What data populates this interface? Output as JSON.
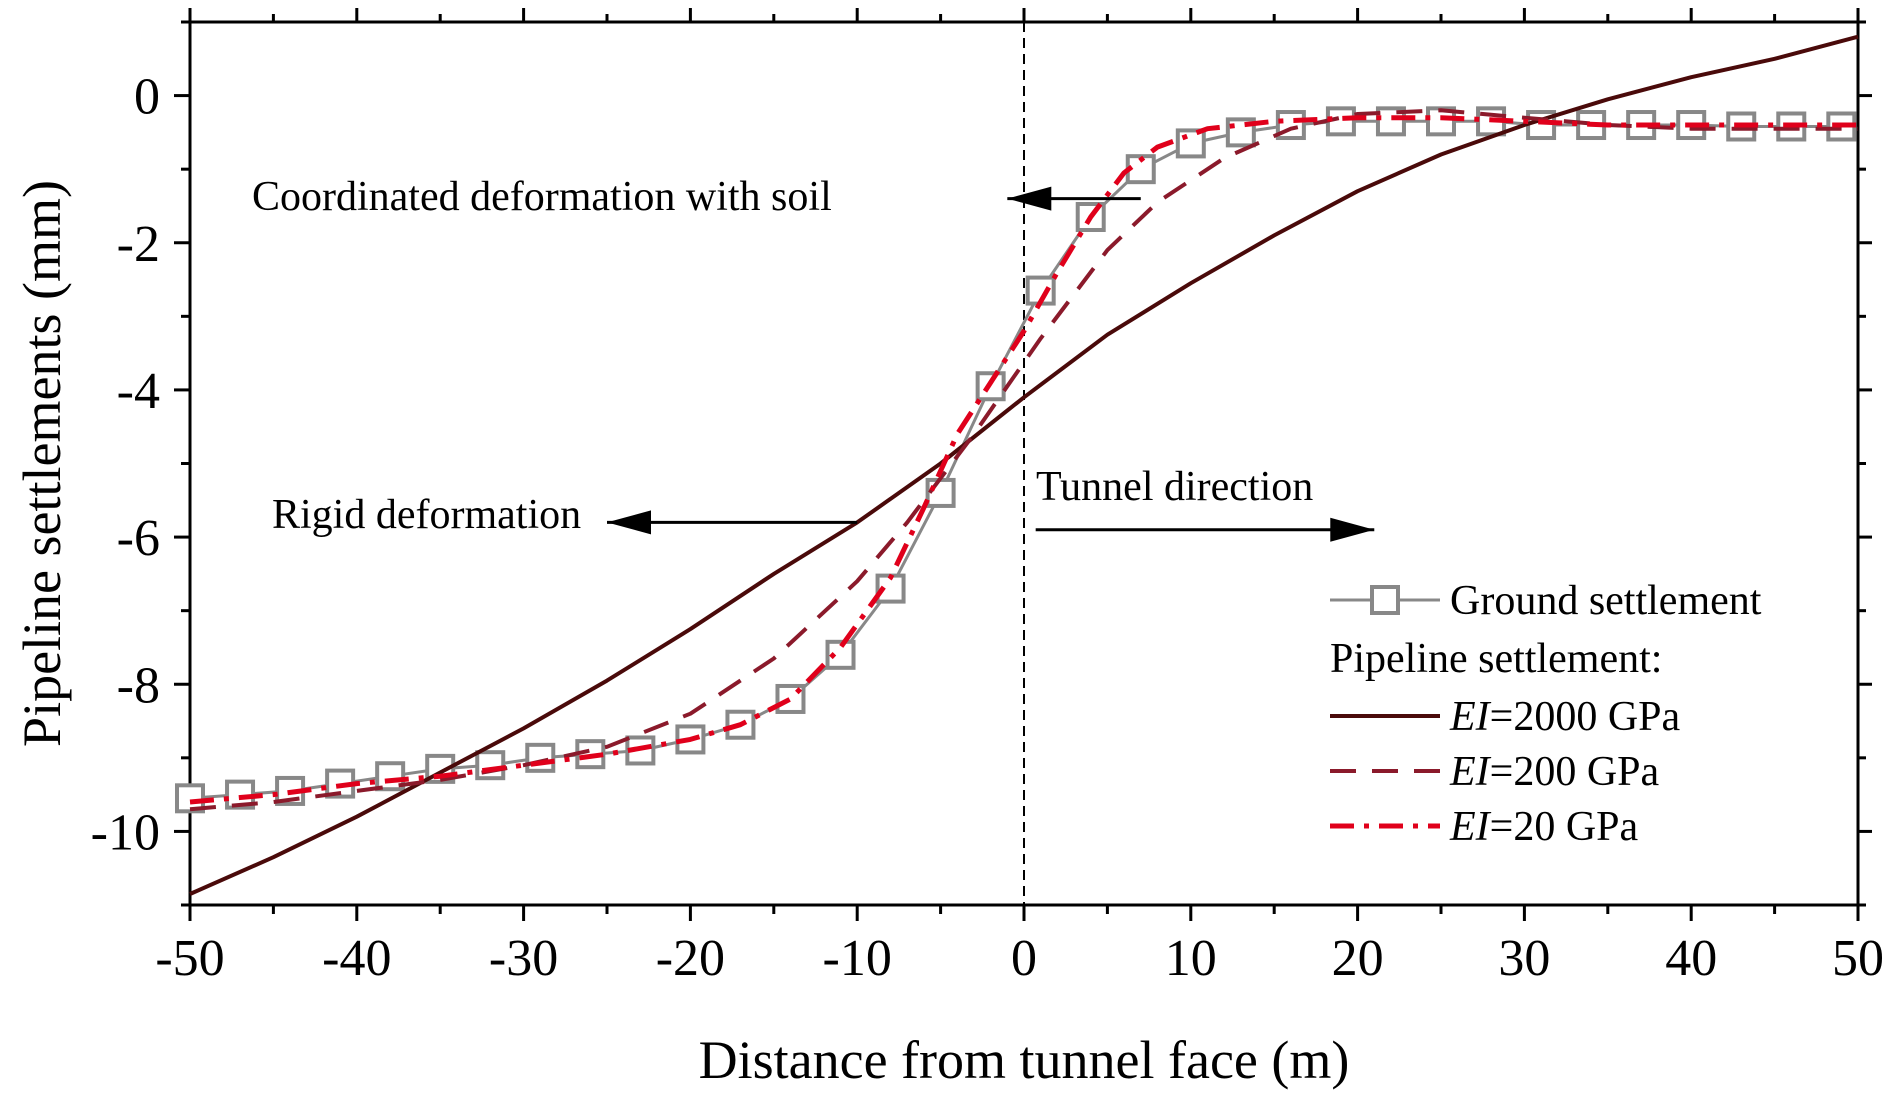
{
  "chart_data": {
    "type": "line",
    "title": "",
    "xlabel": "Distance from tunnel face (m)",
    "ylabel": "Pipeline settlements (mm)",
    "xlim": [
      -50,
      50
    ],
    "ylim": [
      -11,
      1
    ],
    "xticks": [
      -50,
      -40,
      -30,
      -20,
      -10,
      0,
      10,
      20,
      30,
      40,
      50
    ],
    "xtick_labels": [
      "-50",
      "-40",
      "-30",
      "-20",
      "-10",
      "0",
      "10",
      "20",
      "30",
      "40",
      "50"
    ],
    "yticks": [
      0,
      -2,
      -4,
      -6,
      -8,
      -10
    ],
    "ytick_labels": [
      "0",
      "-2",
      "-4",
      "-6",
      "-8",
      "-10"
    ],
    "grid": false,
    "legend_position": "lower-right",
    "legend_header": "Pipeline settlement:",
    "series": [
      {
        "name": "Ground settlement",
        "style": "solid-square-markers",
        "color": "#888888",
        "x": [
          -50,
          -47,
          -44,
          -41,
          -38,
          -35,
          -32,
          -29,
          -26,
          -23,
          -20,
          -17,
          -14,
          -11,
          -8,
          -5,
          -2,
          1,
          4,
          7,
          10,
          13,
          16,
          19,
          22,
          25,
          28,
          31,
          34,
          37,
          40,
          43,
          46,
          49
        ],
        "y": [
          -9.55,
          -9.5,
          -9.45,
          -9.35,
          -9.25,
          -9.15,
          -9.1,
          -9.0,
          -8.95,
          -8.9,
          -8.75,
          -8.55,
          -8.2,
          -7.6,
          -6.7,
          -5.4,
          -3.95,
          -2.65,
          -1.65,
          -1.0,
          -0.65,
          -0.5,
          -0.4,
          -0.35,
          -0.35,
          -0.35,
          -0.35,
          -0.4,
          -0.4,
          -0.4,
          -0.4,
          -0.42,
          -0.42,
          -0.42
        ]
      },
      {
        "name": "EI=2000 GPa",
        "legend_prefix": "EI",
        "legend_suffix": "=2000 GPa",
        "style": "solid",
        "color": "#4a0a0a",
        "x": [
          -50,
          -45,
          -40,
          -35,
          -30,
          -25,
          -20,
          -15,
          -10,
          -5,
          0,
          5,
          10,
          15,
          20,
          25,
          30,
          35,
          40,
          45,
          50
        ],
        "y": [
          -10.85,
          -10.35,
          -9.8,
          -9.2,
          -8.6,
          -7.95,
          -7.25,
          -6.5,
          -5.8,
          -5.0,
          -4.1,
          -3.25,
          -2.55,
          -1.9,
          -1.3,
          -0.8,
          -0.4,
          -0.05,
          0.25,
          0.5,
          0.8
        ]
      },
      {
        "name": "EI=200 GPa",
        "legend_prefix": "EI",
        "legend_suffix": "=200 GPa",
        "style": "dashed",
        "color": "#8b1a2b",
        "x": [
          -50,
          -45,
          -40,
          -35,
          -30,
          -25,
          -20,
          -15,
          -10,
          -7,
          -5,
          -3,
          -1,
          1,
          3,
          5,
          8,
          12,
          16,
          20,
          25,
          30,
          35,
          40,
          45,
          50
        ],
        "y": [
          -9.7,
          -9.6,
          -9.45,
          -9.3,
          -9.1,
          -8.85,
          -8.4,
          -7.65,
          -6.6,
          -5.8,
          -5.2,
          -4.6,
          -3.95,
          -3.3,
          -2.7,
          -2.1,
          -1.45,
          -0.85,
          -0.45,
          -0.25,
          -0.2,
          -0.3,
          -0.4,
          -0.45,
          -0.45,
          -0.45
        ]
      },
      {
        "name": "EI=20 GPa",
        "legend_prefix": "EI",
        "legend_suffix": "=20 GPa",
        "style": "dash-dot",
        "color": "#e0001b",
        "x": [
          -50,
          -45,
          -40,
          -35,
          -30,
          -25,
          -20,
          -17,
          -14,
          -11,
          -8,
          -6,
          -4,
          -2,
          0,
          2,
          4,
          6,
          8,
          11,
          15,
          20,
          25,
          30,
          35,
          40,
          45,
          50
        ],
        "y": [
          -9.6,
          -9.5,
          -9.35,
          -9.25,
          -9.1,
          -8.95,
          -8.75,
          -8.55,
          -8.2,
          -7.5,
          -6.55,
          -5.6,
          -4.6,
          -3.9,
          -3.2,
          -2.4,
          -1.65,
          -1.05,
          -0.7,
          -0.45,
          -0.35,
          -0.3,
          -0.3,
          -0.35,
          -0.4,
          -0.4,
          -0.4,
          -0.4
        ]
      }
    ],
    "vertical_reference_line": {
      "x": 0,
      "style": "dashed"
    },
    "annotations": [
      {
        "text": "Coordinated deformation with soil",
        "arrow": "left",
        "arrow_from": [
          7,
          -1.4
        ],
        "arrow_to": [
          -1,
          -1.4
        ]
      },
      {
        "text": "Rigid deformation",
        "arrow": "left",
        "arrow_from": [
          -10,
          -5.8
        ],
        "arrow_to": [
          -25,
          -5.8
        ]
      },
      {
        "text": "Tunnel direction",
        "arrow": "right",
        "arrow_from": [
          0.7,
          -5.9
        ],
        "arrow_to": [
          21,
          -5.9
        ]
      }
    ]
  }
}
